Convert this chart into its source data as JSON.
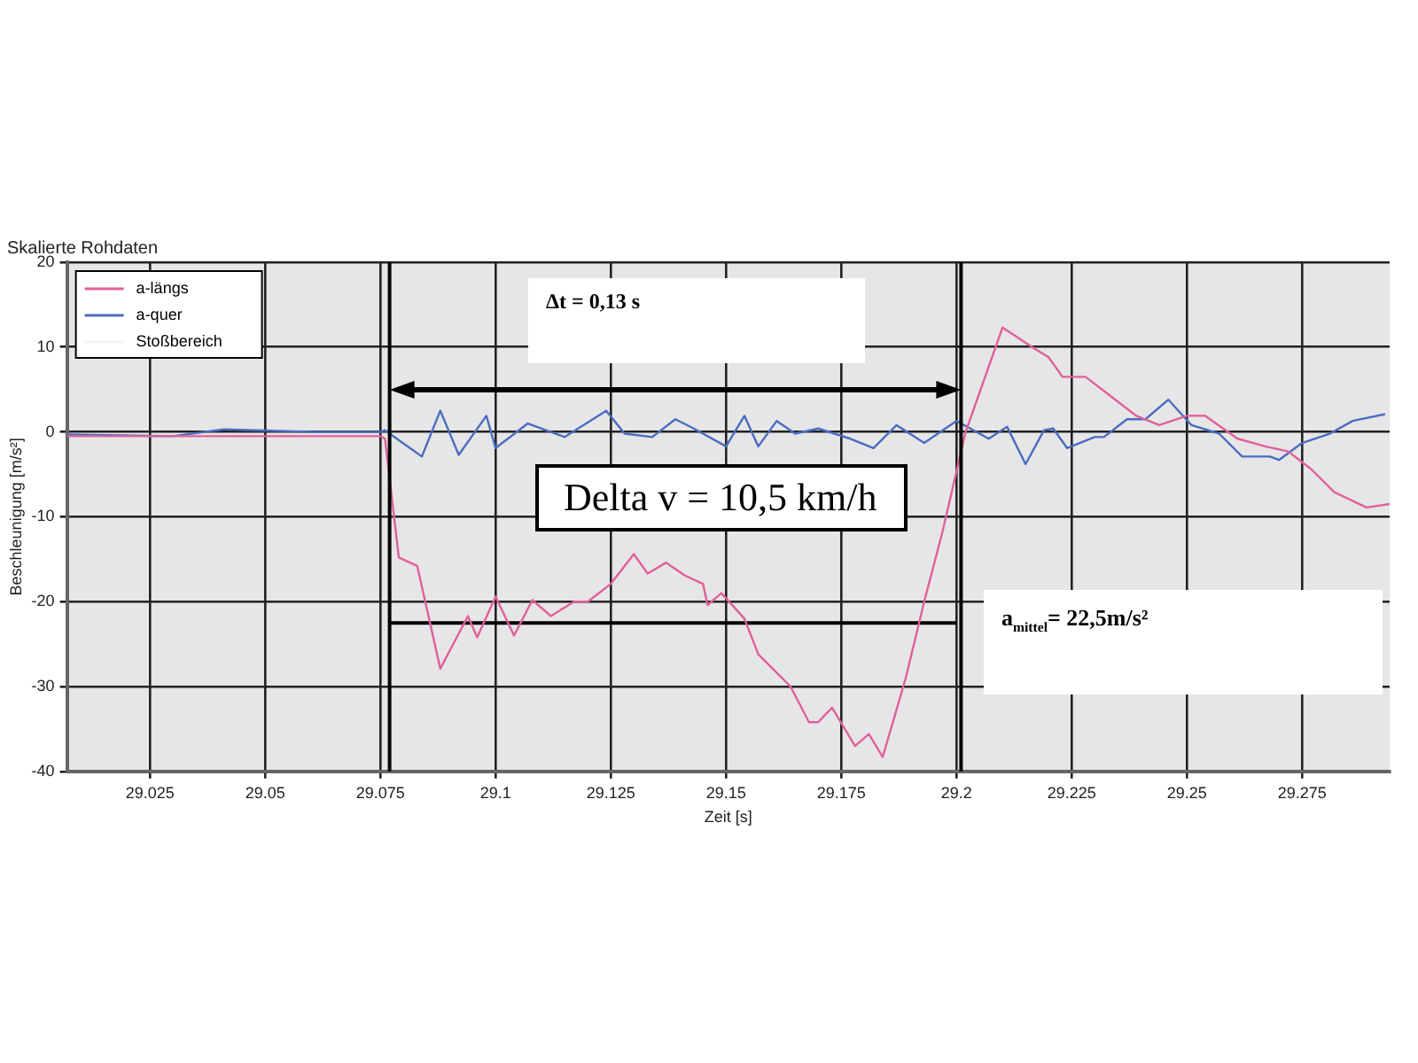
{
  "chart_data": {
    "type": "line",
    "title": "Skalierte Rohdaten",
    "xlabel": "Zeit [s]",
    "ylabel": "Beschleunigung [m/s²]",
    "xlim": [
      29.007,
      29.294
    ],
    "xticks": [
      29.025,
      29.05,
      29.075,
      29.1,
      29.125,
      29.15,
      29.175,
      29.2,
      29.225,
      29.25,
      29.275
    ],
    "ylim": [
      -40,
      20
    ],
    "yticks": [
      -40,
      -30,
      -20,
      -10,
      0,
      10,
      20
    ],
    "grid": true,
    "legend": "top left",
    "marker": "none",
    "line_style": "solid",
    "series": [
      {
        "name": "a-längs",
        "color": "#e0609a",
        "x": [
          29.007,
          29.049,
          29.075,
          29.076,
          29.079,
          29.083,
          29.088,
          29.094,
          29.096,
          29.1,
          29.104,
          29.108,
          29.112,
          29.117,
          29.12,
          29.125,
          29.13,
          29.133,
          29.137,
          29.141,
          29.145,
          29.146,
          29.149,
          29.154,
          29.157,
          29.164,
          29.168,
          29.17,
          29.173,
          29.178,
          29.181,
          29.184,
          29.189,
          29.193,
          29.197,
          29.202,
          29.21,
          29.217,
          29.22,
          29.223,
          29.228,
          29.234,
          29.239,
          29.244,
          29.25,
          29.254,
          29.261,
          29.267,
          29.272,
          29.277,
          29.282,
          29.289,
          29.294
        ],
        "values": [
          -0.5,
          -0.5,
          -0.5,
          -0.8,
          -14.8,
          -15.8,
          -27.9,
          -21.7,
          -24.2,
          -19.4,
          -24,
          -19.8,
          -21.7,
          -20,
          -20,
          -17.9,
          -14.4,
          -16.7,
          -15.4,
          -16.9,
          -17.9,
          -20.4,
          -19,
          -22,
          -26.2,
          -30,
          -34.2,
          -34.2,
          -32.5,
          -37,
          -35.6,
          -38.3,
          -29,
          -20,
          -11.7,
          0,
          12.3,
          9.8,
          8.8,
          6.5,
          6.5,
          4,
          1.9,
          0.8,
          1.9,
          1.9,
          -0.8,
          -1.7,
          -2.3,
          -4.4,
          -7.1,
          -8.9,
          -8.5
        ]
      },
      {
        "name": "a-quer",
        "color": "#4a6cc0",
        "x": [
          29.007,
          29.03,
          29.041,
          29.061,
          29.075,
          29.076,
          29.084,
          29.088,
          29.092,
          29.098,
          29.1,
          29.107,
          29.115,
          29.124,
          29.128,
          29.134,
          29.139,
          29.143,
          29.15,
          29.154,
          29.157,
          29.161,
          29.165,
          29.17,
          29.177,
          29.182,
          29.187,
          29.193,
          29.2,
          29.203,
          29.207,
          29.211,
          29.215,
          29.219,
          29.221,
          29.224,
          29.23,
          29.232,
          29.237,
          29.241,
          29.246,
          29.251,
          29.257,
          29.262,
          29.268,
          29.27,
          29.275,
          29.281,
          29.286,
          29.293
        ],
        "values": [
          -0.3,
          -0.5,
          0.3,
          0,
          0,
          0.2,
          -2.9,
          2.5,
          -2.7,
          1.9,
          -1.9,
          1,
          -0.6,
          2.5,
          -0.2,
          -0.6,
          1.5,
          0.4,
          -1.7,
          1.9,
          -1.7,
          1.3,
          -0.2,
          0.4,
          -0.8,
          -1.9,
          0.8,
          -1.3,
          1.3,
          0.4,
          -0.8,
          0.6,
          -3.8,
          0.2,
          0.4,
          -1.9,
          -0.6,
          -0.6,
          1.5,
          1.5,
          3.8,
          0.8,
          -0.2,
          -2.9,
          -2.9,
          -3.3,
          -1.3,
          -0.2,
          1.3,
          2.1
        ]
      },
      {
        "name": "Stoßbereich",
        "color": "#f2f2f2"
      },
      {
        "color": "#000000",
        "x": [
          29.077,
          29.2
        ],
        "values": [
          -22.5,
          -22.5
        ]
      }
    ],
    "ref_lines": [
      {
        "axis": "x",
        "value": 29.077,
        "label": null,
        "color": "#000000"
      },
      {
        "axis": "x",
        "value": 29.201,
        "label": null,
        "color": "#000000"
      }
    ],
    "annotations": [
      "Δt = 0,13 s",
      "Delta v = 10,5 km/h",
      "a$_{mittel}$= 22,5m/s²"
    ]
  }
}
